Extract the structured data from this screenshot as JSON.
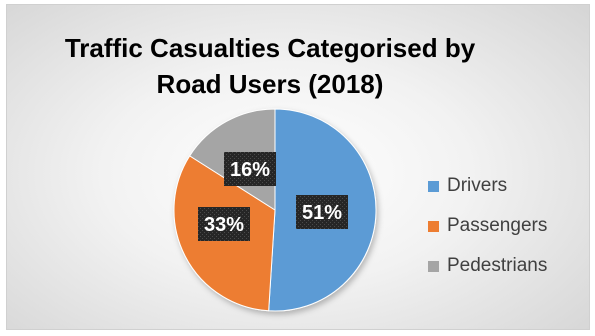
{
  "chart_data": {
    "type": "pie",
    "title_lines": [
      "Traffic Casualties Categorised by",
      "Road Users (2018)"
    ],
    "slices": [
      {
        "label": "Drivers",
        "value": 51,
        "display": "51%",
        "color": "#5b9bd5"
      },
      {
        "label": "Passengers",
        "value": 33,
        "display": "33%",
        "color": "#ed7d31"
      },
      {
        "label": "Pedestrians",
        "value": 16,
        "display": "16%",
        "color": "#a5a5a5"
      }
    ],
    "legend_placement": "right",
    "data_label_style": "dark-patterned-box"
  }
}
